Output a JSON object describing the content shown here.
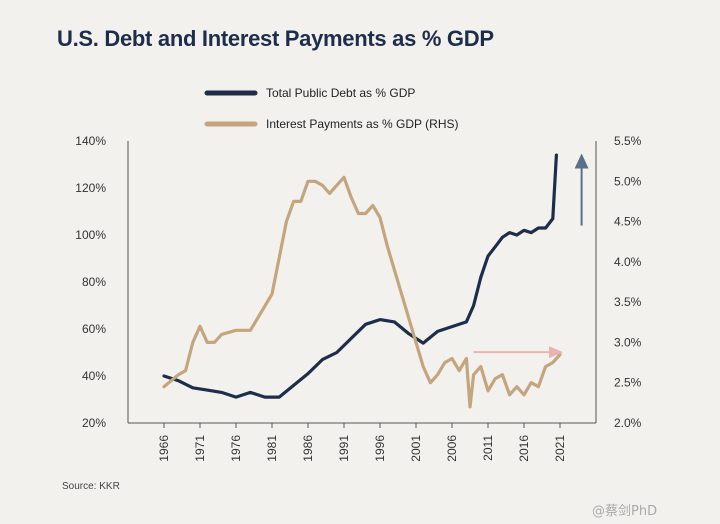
{
  "chart_data": {
    "type": "line",
    "title": "U.S. Debt and Interest Payments as % GDP",
    "source": "Source: KKR",
    "watermark": "@蔡剑PhD",
    "left_axis": {
      "range": [
        20,
        140
      ],
      "ticks": [
        "20%",
        "40%",
        "60%",
        "80%",
        "100%",
        "120%",
        "140%"
      ],
      "tick_values": [
        20,
        40,
        60,
        80,
        100,
        120,
        140
      ]
    },
    "right_axis": {
      "label": "RHS",
      "range": [
        2.0,
        5.5
      ],
      "ticks": [
        "2.0%",
        "2.5%",
        "3.0%",
        "3.5%",
        "4.0%",
        "4.5%",
        "5.0%",
        "5.5%"
      ],
      "tick_values": [
        2.0,
        2.5,
        3.0,
        3.5,
        4.0,
        4.5,
        5.0,
        5.5
      ]
    },
    "x_axis": {
      "range": [
        1961,
        2026
      ],
      "ticks": [
        "1966",
        "1971",
        "1976",
        "1981",
        "1986",
        "1991",
        "1996",
        "2001",
        "2006",
        "2011",
        "2016",
        "2021"
      ],
      "tick_values": [
        1966,
        1971,
        1976,
        1981,
        1986,
        1991,
        1996,
        2001,
        2006,
        2011,
        2016,
        2021
      ]
    },
    "grid": false,
    "legend_position": "top-center",
    "series": [
      {
        "name": "Total Public Debt as % GDP",
        "axis": "left",
        "color": "#1e2d4a",
        "x": [
          1966,
          1968,
          1970,
          1972,
          1974,
          1976,
          1978,
          1980,
          1982,
          1984,
          1986,
          1988,
          1990,
          1992,
          1994,
          1996,
          1998,
          2000,
          2002,
          2004,
          2006,
          2008,
          2009,
          2010,
          2011,
          2012,
          2013,
          2014,
          2015,
          2016,
          2017,
          2018,
          2019,
          2020,
          2020.5
        ],
        "y": [
          40,
          38,
          35,
          34,
          33,
          31,
          33,
          31,
          31,
          36,
          41,
          47,
          50,
          56,
          62,
          64,
          63,
          58,
          54,
          59,
          61,
          63,
          70,
          82,
          91,
          95,
          99,
          101,
          100,
          102,
          101,
          103,
          103,
          107,
          134
        ]
      },
      {
        "name": "Interest Payments as % GDP (RHS)",
        "axis": "right",
        "color": "#c4a57e",
        "x": [
          1966,
          1968,
          1969,
          1970,
          1971,
          1972,
          1973,
          1974,
          1976,
          1978,
          1980,
          1981,
          1982,
          1983,
          1984,
          1985,
          1986,
          1987,
          1988,
          1989,
          1990,
          1991,
          1992,
          1993,
          1994,
          1995,
          1996,
          1997,
          1998,
          1999,
          2000,
          2001,
          2002,
          2003,
          2004,
          2005,
          2006,
          2007,
          2008,
          2008.5,
          2009,
          2010,
          2011,
          2012,
          2013,
          2014,
          2015,
          2016,
          2017,
          2018,
          2019,
          2020,
          2021
        ],
        "y": [
          2.45,
          2.6,
          2.65,
          3.0,
          3.2,
          3.0,
          3.0,
          3.1,
          3.15,
          3.15,
          3.45,
          3.6,
          4.05,
          4.5,
          4.75,
          4.75,
          5.0,
          5.0,
          4.95,
          4.85,
          4.95,
          5.05,
          4.8,
          4.6,
          4.6,
          4.7,
          4.55,
          4.2,
          3.9,
          3.6,
          3.3,
          3.0,
          2.7,
          2.5,
          2.6,
          2.75,
          2.8,
          2.65,
          2.8,
          2.2,
          2.6,
          2.7,
          2.4,
          2.55,
          2.6,
          2.35,
          2.45,
          2.35,
          2.5,
          2.45,
          2.7,
          2.75,
          2.85
        ]
      }
    ],
    "annotations": [
      {
        "type": "arrow",
        "color": "#5a6f8a",
        "direction": "up",
        "from": {
          "x": 2024,
          "y": 104
        },
        "to": {
          "x": 2024,
          "y": 133
        },
        "axis": "left"
      },
      {
        "type": "arrow",
        "color": "#e8b4b0",
        "direction": "right",
        "from": {
          "x": 2009,
          "y": 2.88
        },
        "to": {
          "x": 2021,
          "y": 2.88
        },
        "axis": "right"
      }
    ]
  }
}
